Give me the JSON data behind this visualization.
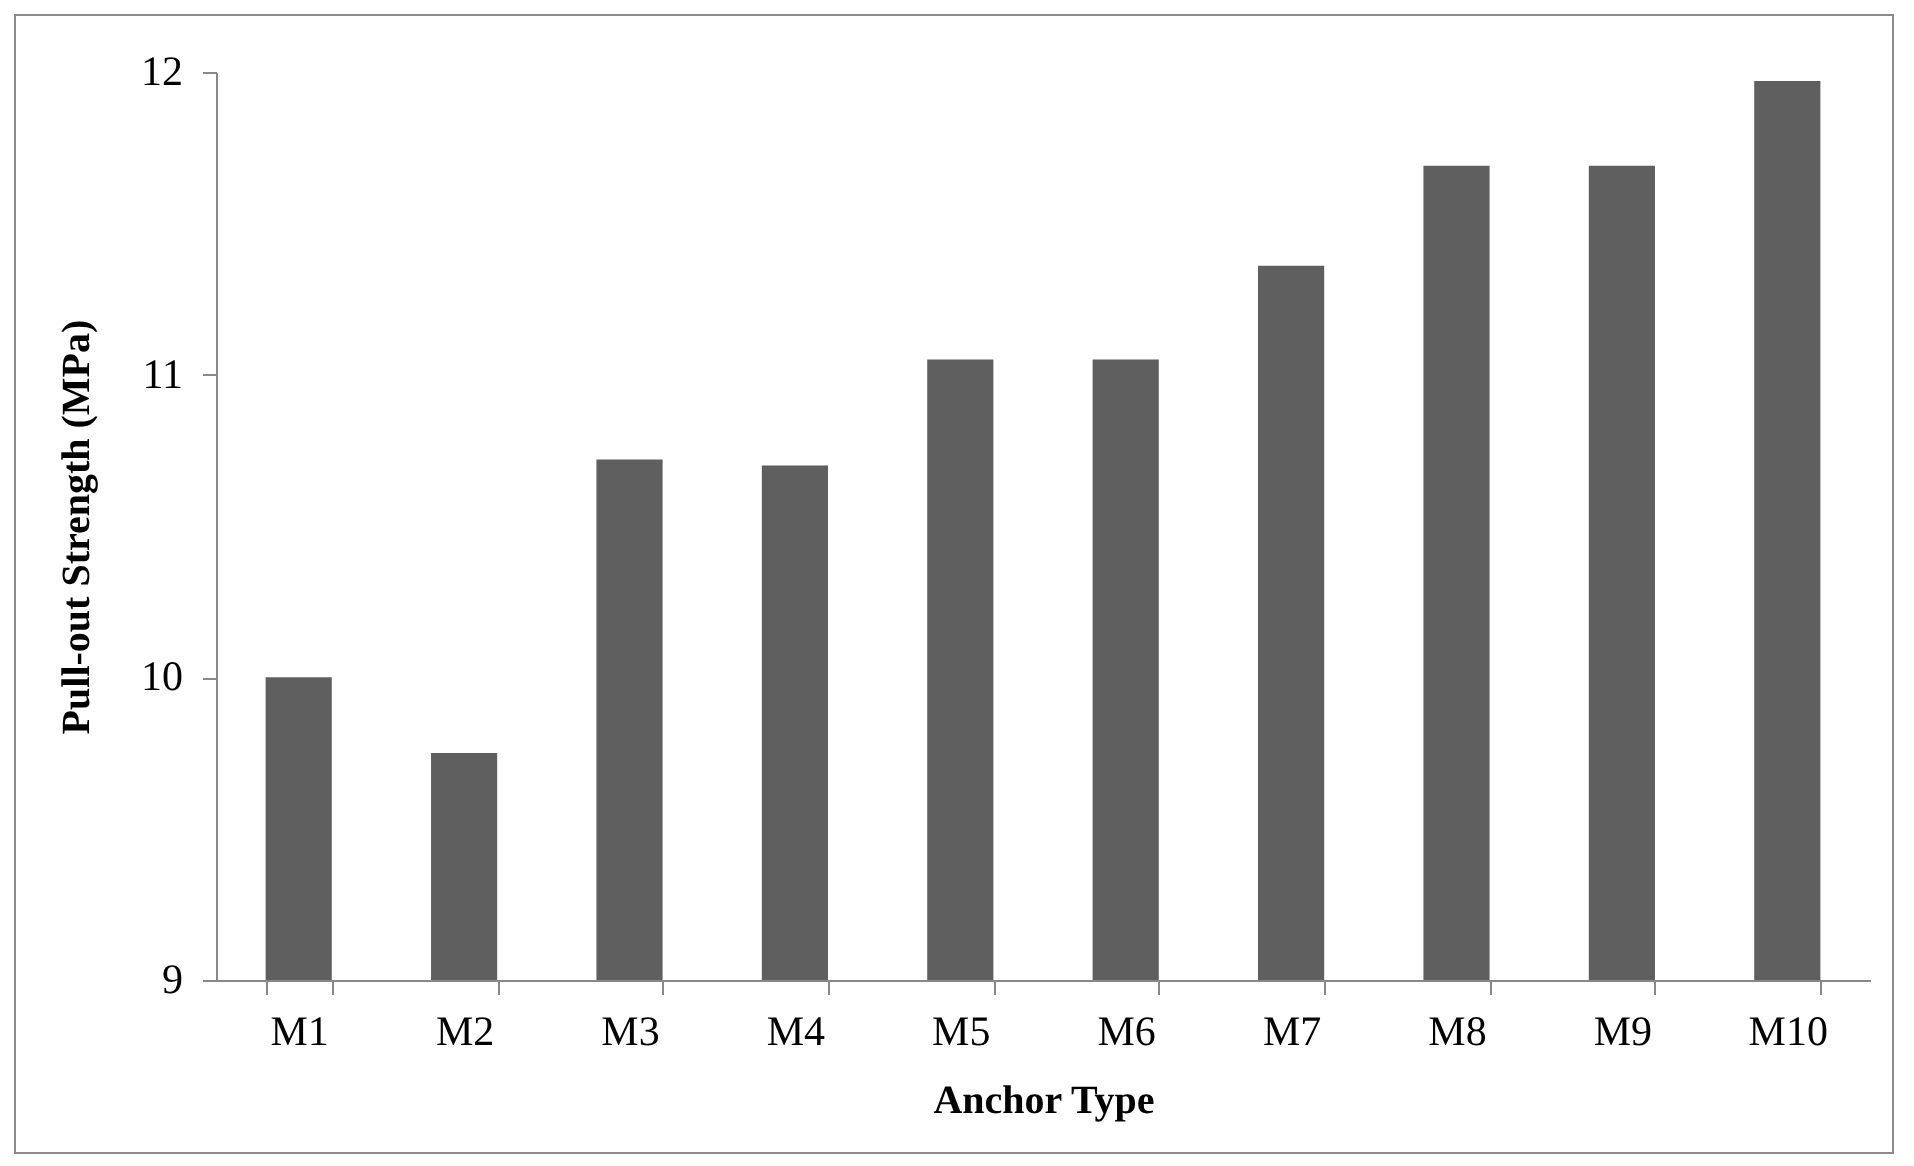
{
  "chart_data": {
    "type": "bar",
    "xlabel": "Anchor Type",
    "ylabel": "Pull-out Strength (MPa)",
    "categories": [
      "M1",
      "M2",
      "M3",
      "M4",
      "M5",
      "M6",
      "M7",
      "M8",
      "M9",
      "M10"
    ],
    "values": [
      10.0,
      9.75,
      10.72,
      10.7,
      11.05,
      11.05,
      11.36,
      11.69,
      11.69,
      11.97
    ],
    "color": "#5f5f5f",
    "ylim": [
      9,
      12
    ],
    "yticks": [
      9,
      10,
      11,
      12
    ],
    "grid": false
  }
}
